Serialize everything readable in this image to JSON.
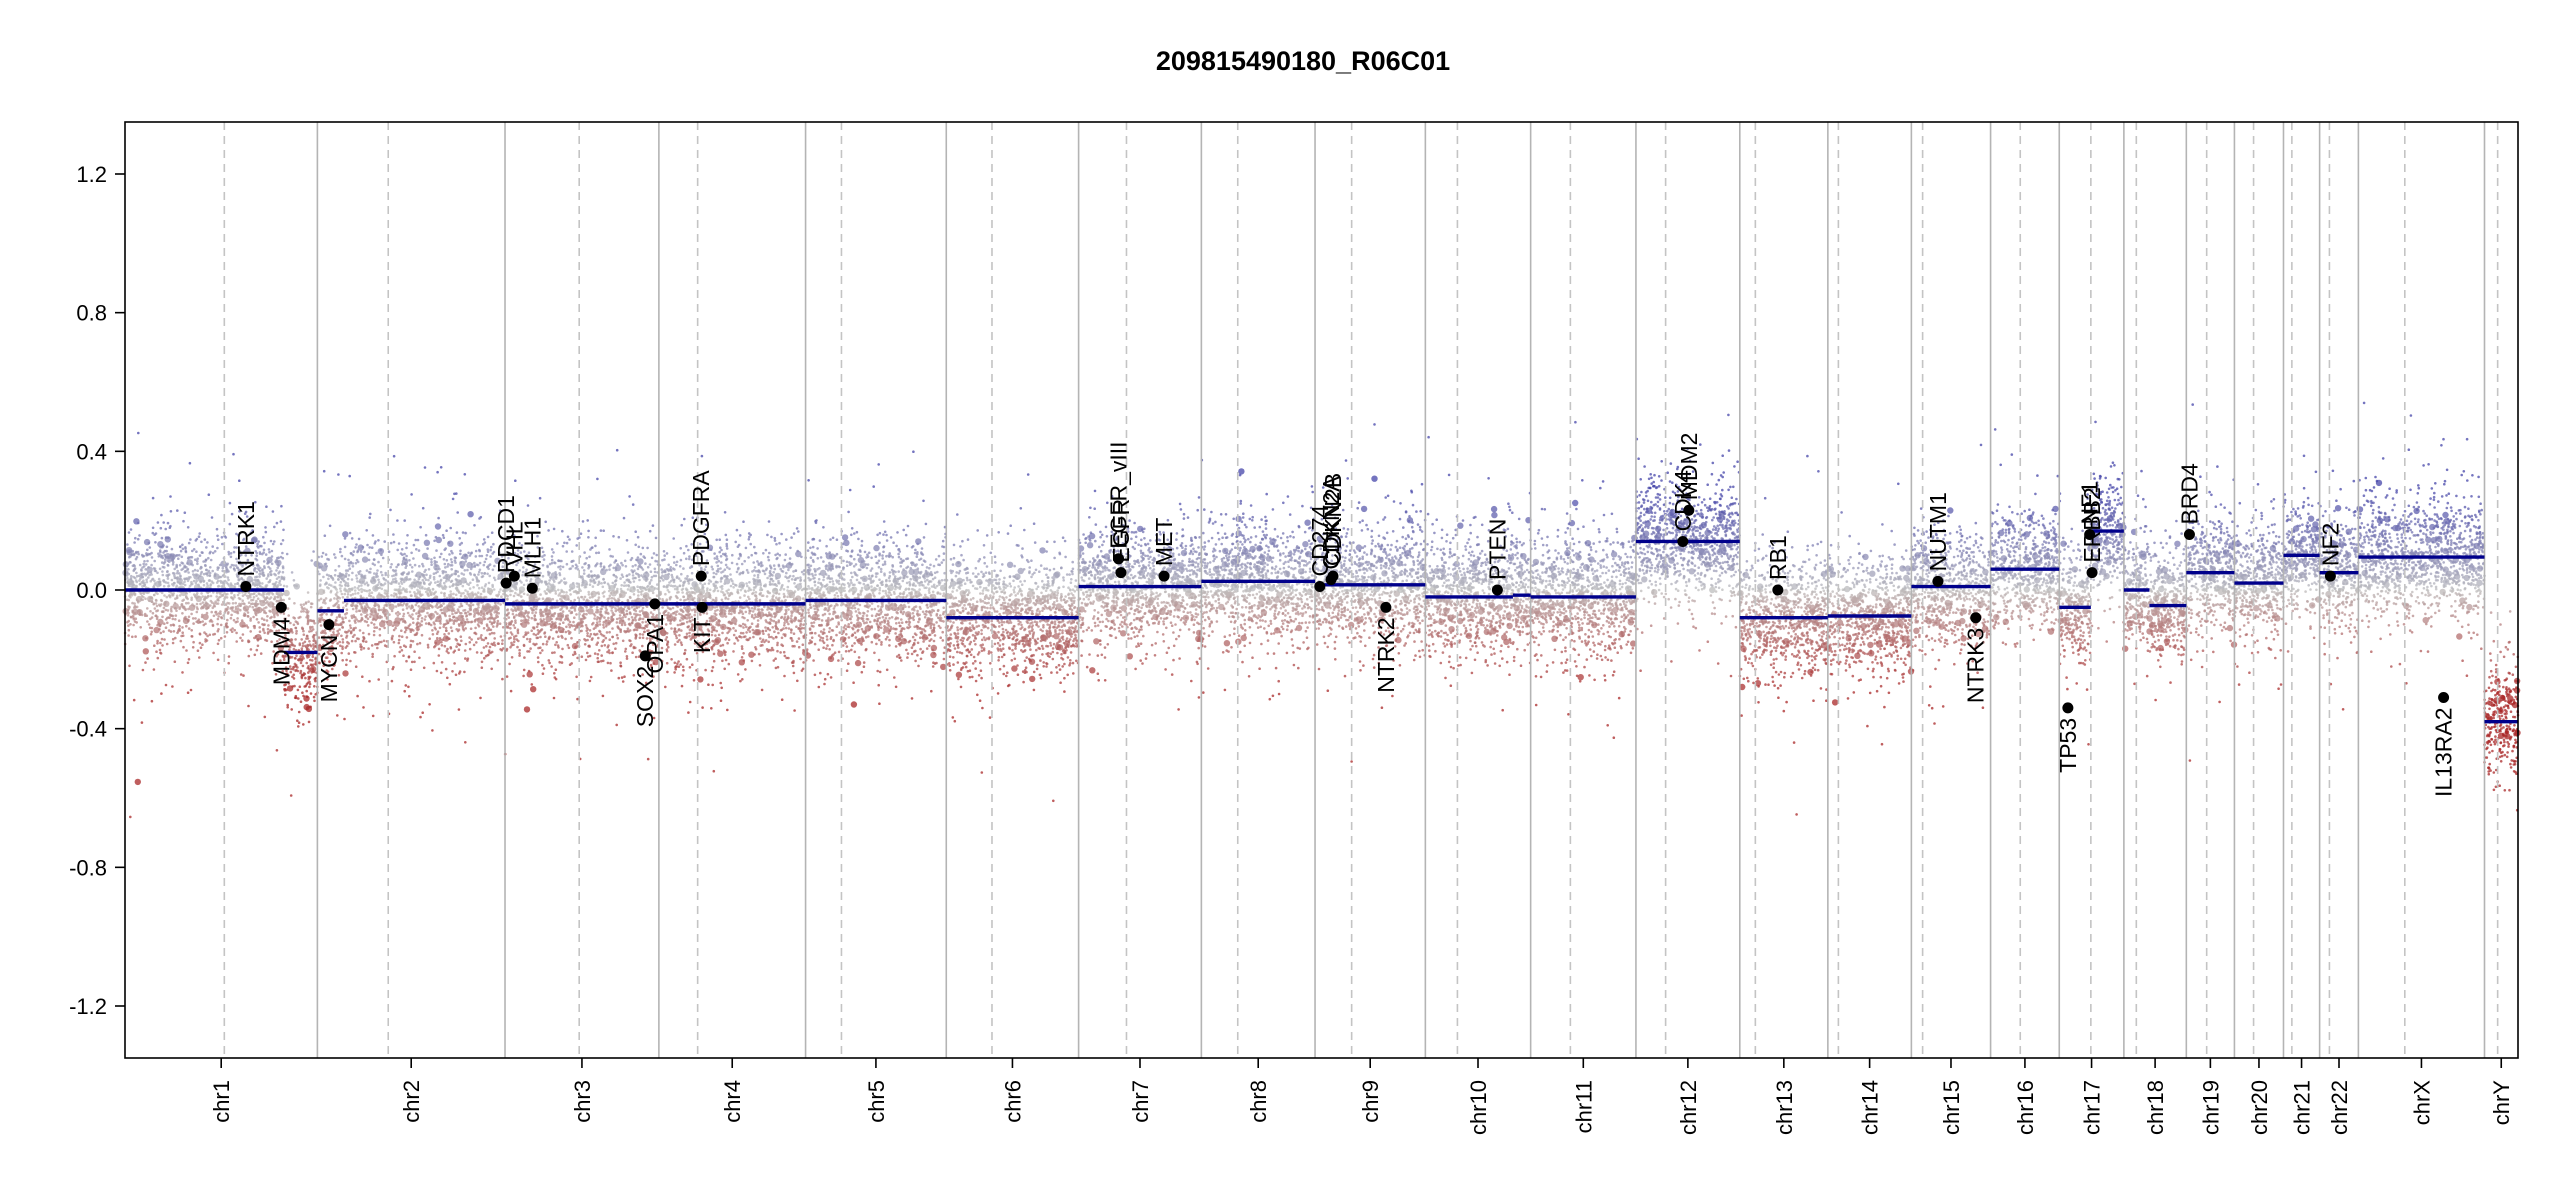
{
  "chart_data": {
    "type": "scatter",
    "title": "209815490180_R06C01",
    "xlabel": "",
    "ylabel": "",
    "ylim": [
      -1.35,
      1.35
    ],
    "yticks": [
      1.2,
      0.8,
      0.4,
      0.0,
      -0.4,
      -0.8,
      -1.2
    ],
    "ytick_labels": [
      "1.2",
      "0.8",
      "0.4",
      "0.0",
      "-0.4",
      "-0.8",
      "-1.2"
    ],
    "xlim": [
      0,
      1000
    ],
    "chromosomes": [
      {
        "name": "chr1",
        "start": 0,
        "end": 80.4,
        "centromere": 41.5
      },
      {
        "name": "chr2",
        "start": 80.4,
        "end": 158.8,
        "centromere": 110.0
      },
      {
        "name": "chr3",
        "start": 158.8,
        "end": 223.1,
        "centromere": 189.8
      },
      {
        "name": "chr4",
        "start": 223.1,
        "end": 284.4,
        "centromere": 239.3
      },
      {
        "name": "chr5",
        "start": 284.4,
        "end": 343.2,
        "centromere": 299.4
      },
      {
        "name": "chr6",
        "start": 343.2,
        "end": 398.5,
        "centromere": 362.3
      },
      {
        "name": "chr7",
        "start": 398.5,
        "end": 449.8,
        "centromere": 418.5
      },
      {
        "name": "chr8",
        "start": 449.8,
        "end": 497.3,
        "centromere": 465.0
      },
      {
        "name": "chr9",
        "start": 497.3,
        "end": 543.4,
        "centromere": 512.6
      },
      {
        "name": "chr10",
        "start": 543.4,
        "end": 587.4,
        "centromere": 556.8
      },
      {
        "name": "chr11",
        "start": 587.4,
        "end": 631.4,
        "centromere": 604.0
      },
      {
        "name": "chr12",
        "start": 631.4,
        "end": 674.8,
        "centromere": 643.8
      },
      {
        "name": "chr13",
        "start": 674.8,
        "end": 711.6,
        "centromere": 681.3
      },
      {
        "name": "chr14",
        "start": 711.6,
        "end": 746.5,
        "centromere": 716.0
      },
      {
        "name": "chr15",
        "start": 746.5,
        "end": 779.6,
        "centromere": 751.2
      },
      {
        "name": "chr16",
        "start": 779.6,
        "end": 808.3,
        "centromere": 792.0
      },
      {
        "name": "chr17",
        "start": 808.3,
        "end": 835.3,
        "centromere": 821.5
      },
      {
        "name": "chr18",
        "start": 835.3,
        "end": 861.4,
        "centromere": 840.5
      },
      {
        "name": "chr19",
        "start": 861.4,
        "end": 881.5,
        "centromere": 869.9
      },
      {
        "name": "chr20",
        "start": 881.5,
        "end": 902.0,
        "centromere": 889.5
      },
      {
        "name": "chr21",
        "start": 902.0,
        "end": 917.1,
        "centromere": 905.5
      },
      {
        "name": "chr22",
        "start": 917.1,
        "end": 933.3,
        "centromere": 921.2
      },
      {
        "name": "chrX",
        "start": 933.3,
        "end": 986.0,
        "centromere": 952.7
      },
      {
        "name": "chrY",
        "start": 986.0,
        "end": 1000.0,
        "centromere": 991.5
      }
    ],
    "segments": [
      {
        "chr": "chr1",
        "x0": 0,
        "x1": 66.5,
        "y": 0.0
      },
      {
        "chr": "chr1",
        "x0": 66.5,
        "x1": 80.4,
        "y": -0.18
      },
      {
        "chr": "chr2",
        "x0": 80.4,
        "x1": 91.5,
        "y": -0.06
      },
      {
        "chr": "chr2",
        "x0": 91.5,
        "x1": 158.8,
        "y": -0.03
      },
      {
        "chr": "chr3",
        "x0": 158.8,
        "x1": 223.1,
        "y": -0.04
      },
      {
        "chr": "chr4",
        "x0": 223.1,
        "x1": 284.4,
        "y": -0.04
      },
      {
        "chr": "chr5",
        "x0": 284.4,
        "x1": 343.2,
        "y": -0.03
      },
      {
        "chr": "chr6",
        "x0": 343.2,
        "x1": 398.5,
        "y": -0.08
      },
      {
        "chr": "chr7",
        "x0": 398.5,
        "x1": 449.8,
        "y": 0.01
      },
      {
        "chr": "chr8",
        "x0": 449.8,
        "x1": 497.3,
        "y": 0.025
      },
      {
        "chr": "chr9",
        "x0": 497.3,
        "x1": 543.4,
        "y": 0.015
      },
      {
        "chr": "chr10",
        "x0": 543.4,
        "x1": 580.0,
        "y": -0.02
      },
      {
        "chr": "chr10",
        "x0": 580.0,
        "x1": 587.4,
        "y": -0.015
      },
      {
        "chr": "chr11",
        "x0": 587.4,
        "x1": 631.4,
        "y": -0.02
      },
      {
        "chr": "chr12",
        "x0": 631.4,
        "x1": 674.8,
        "y": 0.14
      },
      {
        "chr": "chr13",
        "x0": 674.8,
        "x1": 711.6,
        "y": -0.08
      },
      {
        "chr": "chr14",
        "x0": 711.6,
        "x1": 746.5,
        "y": -0.075
      },
      {
        "chr": "chr15",
        "x0": 746.5,
        "x1": 779.6,
        "y": 0.01
      },
      {
        "chr": "chr16",
        "x0": 779.6,
        "x1": 808.3,
        "y": 0.06
      },
      {
        "chr": "chr17",
        "x0": 808.3,
        "x1": 821.5,
        "y": -0.05
      },
      {
        "chr": "chr17",
        "x0": 821.5,
        "x1": 835.3,
        "y": 0.17
      },
      {
        "chr": "chr18",
        "x0": 835.3,
        "x1": 846.0,
        "y": 0.0
      },
      {
        "chr": "chr18",
        "x0": 846.0,
        "x1": 861.4,
        "y": -0.045
      },
      {
        "chr": "chr19",
        "x0": 861.4,
        "x1": 881.5,
        "y": 0.05
      },
      {
        "chr": "chr20",
        "x0": 881.5,
        "x1": 902.0,
        "y": 0.02
      },
      {
        "chr": "chr21",
        "x0": 902.0,
        "x1": 917.1,
        "y": 0.1
      },
      {
        "chr": "chr22",
        "x0": 917.1,
        "x1": 933.3,
        "y": 0.05
      },
      {
        "chr": "chrX",
        "x0": 933.3,
        "x1": 986.0,
        "y": 0.095
      },
      {
        "chr": "chrY",
        "x0": 986.0,
        "x1": 1000.0,
        "y": -0.38
      }
    ],
    "genes": [
      {
        "name": "NTRK1",
        "x": 50.5,
        "y": 0.01,
        "label_side": "above"
      },
      {
        "name": "MDM4",
        "x": 65.3,
        "y": -0.05,
        "label_side": "below"
      },
      {
        "name": "MYCN",
        "x": 85.2,
        "y": -0.1,
        "label_side": "below"
      },
      {
        "name": "PDCD1",
        "x": 159.3,
        "y": 0.02,
        "label_side": "above"
      },
      {
        "name": "VHL",
        "x": 162.7,
        "y": 0.04,
        "label_side": "above"
      },
      {
        "name": "MLH1",
        "x": 170.2,
        "y": 0.005,
        "label_side": "above"
      },
      {
        "name": "SOX2",
        "x": 217.4,
        "y": -0.19,
        "label_side": "below"
      },
      {
        "name": "OPA1",
        "x": 221.4,
        "y": -0.04,
        "label_side": "below"
      },
      {
        "name": "PDGFRA",
        "x": 240.8,
        "y": 0.04,
        "label_side": "above"
      },
      {
        "name": "KIT",
        "x": 241.2,
        "y": -0.05,
        "label_side": "below"
      },
      {
        "name": "EGFR_vIII",
        "x": 415.2,
        "y": 0.09,
        "label_side": "above"
      },
      {
        "name": "EGFR",
        "x": 416.2,
        "y": 0.05,
        "label_side": "above"
      },
      {
        "name": "MET",
        "x": 434.2,
        "y": 0.04,
        "label_side": "above"
      },
      {
        "name": "CD274",
        "x": 499.3,
        "y": 0.01,
        "label_side": "above"
      },
      {
        "name": "CDKN2A",
        "x": 504.0,
        "y": 0.03,
        "label_side": "above"
      },
      {
        "name": "CDKN2B",
        "x": 504.8,
        "y": 0.04,
        "label_side": "above"
      },
      {
        "name": "NTRK2",
        "x": 526.9,
        "y": -0.05,
        "label_side": "below"
      },
      {
        "name": "PTEN",
        "x": 573.5,
        "y": 0.0,
        "label_side": "above"
      },
      {
        "name": "CDK4",
        "x": 651.0,
        "y": 0.14,
        "label_side": "above"
      },
      {
        "name": "MDM2",
        "x": 653.5,
        "y": 0.23,
        "label_side": "above"
      },
      {
        "name": "RB1",
        "x": 690.7,
        "y": 0.0,
        "label_side": "above"
      },
      {
        "name": "NUTM1",
        "x": 757.6,
        "y": 0.025,
        "label_side": "above"
      },
      {
        "name": "NTRK3",
        "x": 773.4,
        "y": -0.08,
        "label_side": "below"
      },
      {
        "name": "TP53",
        "x": 811.9,
        "y": -0.34,
        "label_side": "below"
      },
      {
        "name": "NF1",
        "x": 821.0,
        "y": 0.16,
        "label_side": "above"
      },
      {
        "name": "ERBB2",
        "x": 822.0,
        "y": 0.05,
        "label_side": "above"
      },
      {
        "name": "BRD4",
        "x": 862.7,
        "y": 0.16,
        "label_side": "above"
      },
      {
        "name": "NF2",
        "x": 921.6,
        "y": 0.04,
        "label_side": "above"
      },
      {
        "name": "IL13RA2",
        "x": 968.9,
        "y": -0.31,
        "label_side": "below"
      }
    ],
    "colors": {
      "segment": "#00008b",
      "gain": "#2b2bab",
      "loss": "#b22222",
      "neutral": "#bdbdbd",
      "gene_point": "#000000",
      "chrom_border": "#b4b4b4",
      "centromere": "#c4c4c4"
    },
    "grid": false
  }
}
